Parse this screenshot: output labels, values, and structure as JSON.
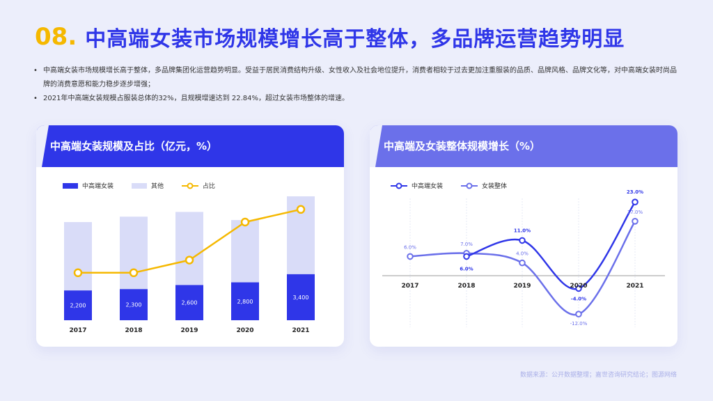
{
  "header": {
    "number": "08.",
    "title": "中高端女装市场规模增长高于整体，多品牌运营趋势明显"
  },
  "bullets": [
    "中高端女装市场规模增长高于整体，多品牌集团化运营趋势明显。受益于居民消费结构升级、女性收入及社会地位提升，消费者相较于过去更加注重服装的品质、品牌风格、品牌文化等，对中高端女装时尚品牌的消费意愿和能力稳步逐步增强；",
    "2021年中高端女装规模占服装总体的32%，且规模增速达到 22.84%，超过女装市场整体的增速。"
  ],
  "colors": {
    "primary": "#2f36e8",
    "light": "#d9dcf8",
    "accent": "#f5b800",
    "secondary": "#6b70ea"
  },
  "left_card": {
    "title": "中高端女装规模及占比（亿元，%）"
  },
  "right_card": {
    "title": "中高端及女装整体规模增长（%）"
  },
  "chart_data": [
    {
      "type": "bar",
      "categories": [
        "2017",
        "2018",
        "2019",
        "2020",
        "2021"
      ],
      "series": [
        {
          "name": "中高端女装",
          "values": [
            2200,
            2300,
            2600,
            2800,
            3400
          ],
          "labels": [
            "2,200",
            "2,300",
            "2,600",
            "2,800",
            "3,400"
          ]
        },
        {
          "name": "其他",
          "values": [
            5050,
            5350,
            5400,
            4600,
            5750
          ]
        },
        {
          "name": "占比",
          "values": [
            22,
            22,
            24,
            30,
            32
          ]
        }
      ],
      "legend": "top-left"
    },
    {
      "type": "line",
      "categories": [
        "2017",
        "2018",
        "2019",
        "2020",
        "2021"
      ],
      "series": [
        {
          "name": "中高端女装",
          "values": [
            null,
            6.0,
            11.0,
            -4.0,
            23.0
          ],
          "labels": [
            "",
            "6.0%",
            "11.0%",
            "-4.0%",
            "23.0%"
          ]
        },
        {
          "name": "女装整体",
          "values": [
            6.0,
            7.0,
            4.0,
            -12.0,
            17.0
          ],
          "labels": [
            "6.0%",
            "7.0%",
            "4.0%",
            "-12.0%",
            "17.0%"
          ]
        }
      ],
      "legend": "top-left"
    }
  ],
  "source": "数据来源：公开数据整理；嘉世咨询研究结论；图源网络"
}
